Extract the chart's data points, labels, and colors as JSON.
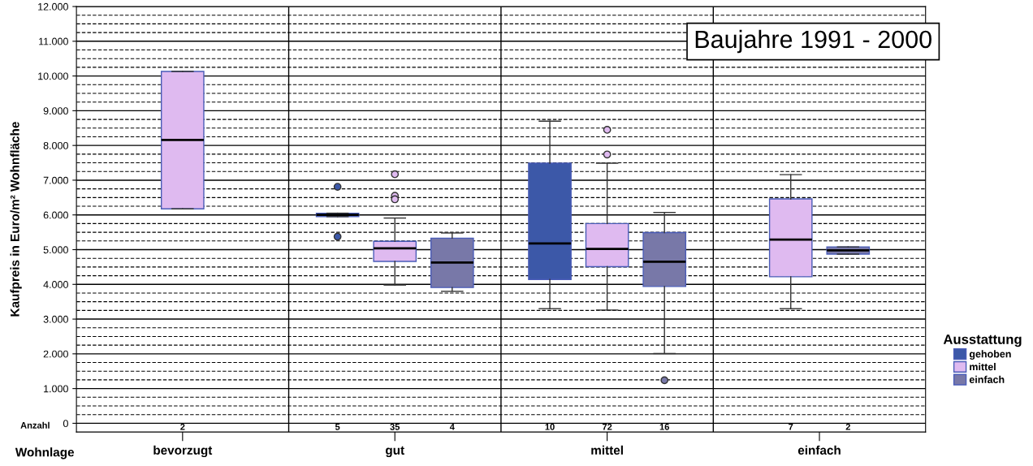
{
  "chart_data": {
    "type": "box",
    "title": "Baujahre 1991 - 2000",
    "ylabel": "Kaufpreis in Euro/m² Wohnfläche",
    "xlabel": "Wohnlage",
    "legend_title": "Ausstattung",
    "legend": "right",
    "grid": true,
    "categories": [
      "bevorzugt",
      "gut",
      "mittel",
      "einfach"
    ],
    "ylim": [
      -250,
      12000
    ],
    "yticks": [
      {
        "value": 0,
        "label": "0"
      },
      {
        "value": 1000,
        "label": "1.000"
      },
      {
        "value": 2000,
        "label": "2.000"
      },
      {
        "value": 3000,
        "label": "3.000"
      },
      {
        "value": 4000,
        "label": "4.000"
      },
      {
        "value": 5000,
        "label": "5.000"
      },
      {
        "value": 6000,
        "label": "6.000"
      },
      {
        "value": 7000,
        "label": "7.000"
      },
      {
        "value": 8000,
        "label": "8.000"
      },
      {
        "value": 9000,
        "label": "9.000"
      },
      {
        "value": 10000,
        "label": "10.000"
      },
      {
        "value": 11000,
        "label": "11.000"
      },
      {
        "value": 12000,
        "label": "12.000"
      }
    ],
    "annotations": [
      "Anzahl"
    ],
    "series": [
      {
        "name": "gehoben",
        "color": "#3c58a8",
        "value_labels": [
          null,
          "5",
          "10",
          null
        ],
        "boxes": [
          null,
          {
            "low": 5950,
            "q1": 5950,
            "median": 6000,
            "q3": 6050,
            "high": 6050,
            "outliers": [
              6810,
              5375
            ]
          },
          {
            "low": 3300,
            "q1": 4140,
            "median": 5180,
            "q3": 7490,
            "high": 8700
          },
          null
        ]
      },
      {
        "name": "mittel",
        "color": "#dfbaf0",
        "value_labels": [
          "2",
          "35",
          "72",
          "7"
        ],
        "boxes": [
          {
            "low": 6175,
            "q1": 6175,
            "median": 8160,
            "q3": 10130,
            "high": 10130
          },
          {
            "low": 3980,
            "q1": 4660,
            "median": 5040,
            "q3": 5240,
            "high": 5910,
            "outliers": [
              6550,
              6450,
              7170
            ]
          },
          {
            "low": 3260,
            "q1": 4510,
            "median": 5020,
            "q3": 5750,
            "high": 7490,
            "outliers": [
              8450,
              7740
            ]
          },
          {
            "low": 3300,
            "q1": 4220,
            "median": 5290,
            "q3": 6460,
            "high": 7160
          }
        ]
      },
      {
        "name": "einfach",
        "color": "#7878a8",
        "value_labels": [
          null,
          "4",
          "16",
          "2"
        ],
        "boxes": [
          null,
          {
            "low": 3800,
            "q1": 3910,
            "median": 4630,
            "q3": 5330,
            "high": 5480
          },
          {
            "low": 2010,
            "q1": 3940,
            "median": 4650,
            "q3": 5490,
            "high": 6070,
            "outliers": [
              1240
            ]
          },
          {
            "low": 4870,
            "q1": 4870,
            "median": 4980,
            "q3": 5080,
            "high": 5080
          }
        ]
      }
    ]
  }
}
